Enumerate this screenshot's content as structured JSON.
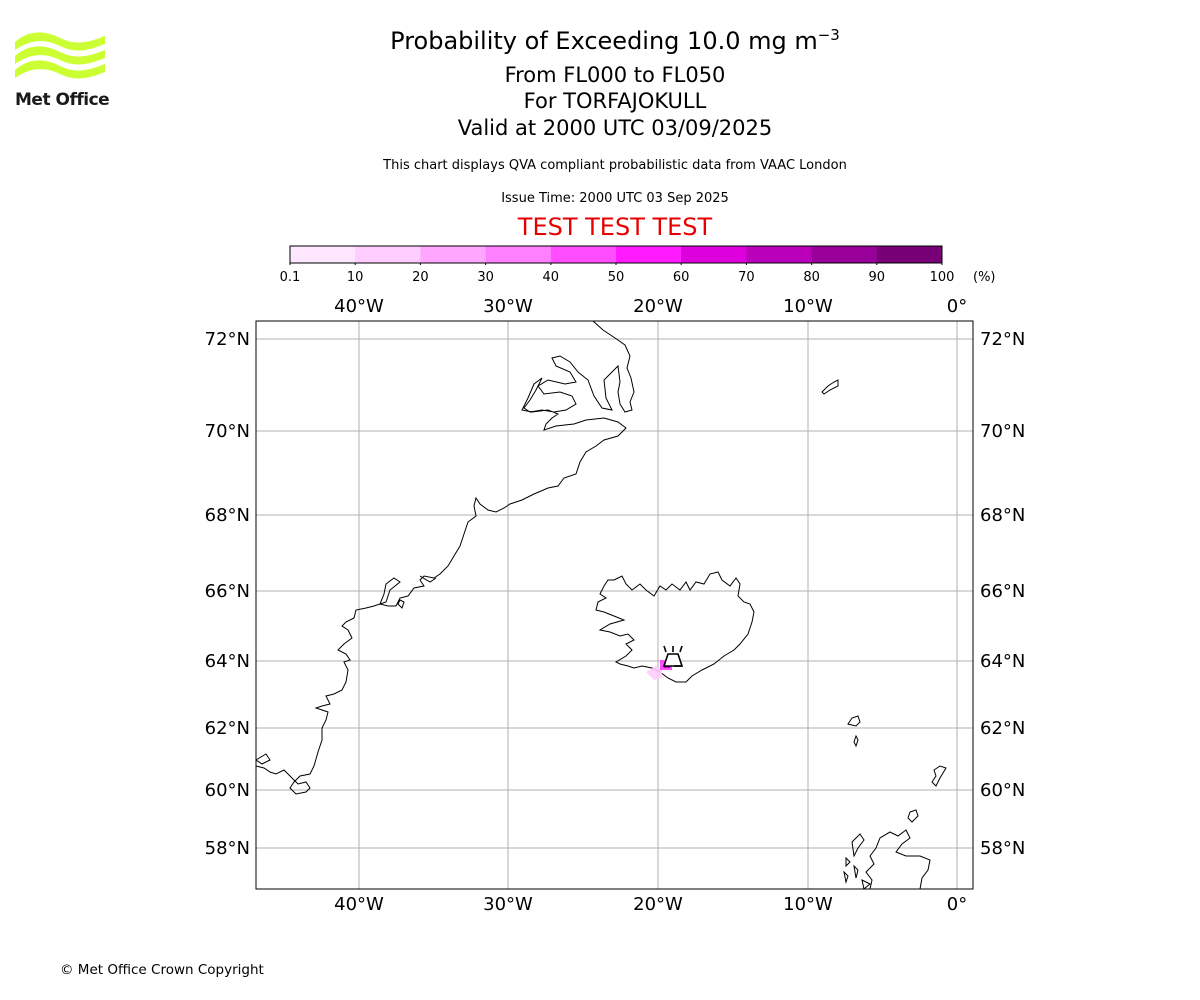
{
  "header": {
    "title_prefix": "Probability of Exceeding 10.0 mg m",
    "title_exponent": "−3",
    "levels": "From FL000 to FL050",
    "volcano": "For TORFAJOKULL",
    "valid": "Valid at 2000 UTC 03/09/2025",
    "description": "This chart displays QVA compliant probabilistic data from VAAC London",
    "issue_time": "Issue Time: 2000 UTC 03 Sep 2025",
    "test_banner": "TEST TEST TEST"
  },
  "logo": {
    "text": "Met Office",
    "color": "#ccff33"
  },
  "colorbar": {
    "labels": [
      "0.1",
      "10",
      "20",
      "30",
      "40",
      "50",
      "60",
      "70",
      "80",
      "90",
      "100"
    ],
    "unit": "(%)",
    "colors": [
      "#ffe6ff",
      "#ffccff",
      "#ffa6ff",
      "#ff80ff",
      "#ff4dff",
      "#ff1aff",
      "#dd00dd",
      "#bb00bb",
      "#990099",
      "#770077"
    ]
  },
  "map": {
    "lon_labels": [
      "40°W",
      "30°W",
      "20°W",
      "10°W",
      "0°"
    ],
    "lat_labels": [
      "72°N",
      "70°N",
      "68°N",
      "66°N",
      "64°N",
      "62°N",
      "60°N",
      "58°N"
    ],
    "volcano_marker": "volcano-icon",
    "hotspot_probability": "10-60 %"
  },
  "footer": {
    "copyright": "© Met Office Crown Copyright"
  }
}
